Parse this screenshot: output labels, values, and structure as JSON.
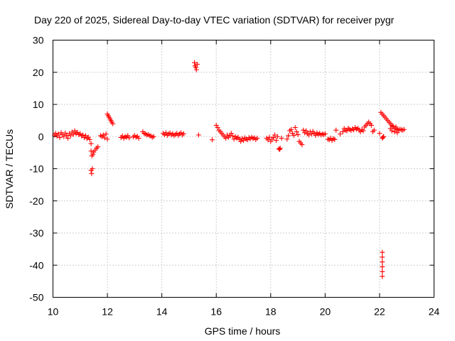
{
  "chart_data": {
    "type": "scatter",
    "title": "Day 220 of 2025, Sidereal Day-to-day VTEC variation (SDTVAR) for receiver pygr",
    "xlabel": "GPS time / hours",
    "ylabel": "SDTVAR / TECUs",
    "xlim": [
      10,
      24
    ],
    "ylim": [
      -50,
      30
    ],
    "xticks": [
      10,
      12,
      14,
      16,
      18,
      20,
      22,
      24
    ],
    "yticks": [
      -50,
      -40,
      -30,
      -20,
      -10,
      0,
      10,
      20,
      30
    ],
    "grid": true,
    "marker": "+",
    "color": "#ff0000",
    "series": [
      {
        "name": "SDTVAR",
        "points": [
          [
            10.05,
            0.5
          ],
          [
            10.1,
            1.0
          ],
          [
            10.15,
            0.2
          ],
          [
            10.2,
            0.8
          ],
          [
            10.25,
            -0.3
          ],
          [
            10.3,
            1.2
          ],
          [
            10.35,
            0.6
          ],
          [
            10.4,
            0.0
          ],
          [
            10.45,
            1.1
          ],
          [
            10.5,
            0.4
          ],
          [
            10.55,
            -0.5
          ],
          [
            10.6,
            0.9
          ],
          [
            10.65,
            0.3
          ],
          [
            10.7,
            1.4
          ],
          [
            10.75,
            0.7
          ],
          [
            10.8,
            1.8
          ],
          [
            10.85,
            1.0
          ],
          [
            10.9,
            1.3
          ],
          [
            10.95,
            0.6
          ],
          [
            11.0,
            0.9
          ],
          [
            11.05,
            0.2
          ],
          [
            11.1,
            0.5
          ],
          [
            11.15,
            -0.3
          ],
          [
            11.2,
            0.3
          ],
          [
            11.25,
            -0.6
          ],
          [
            11.3,
            -0.2
          ],
          [
            11.35,
            -0.9
          ],
          [
            11.4,
            -2.2
          ],
          [
            11.4,
            -4.5
          ],
          [
            11.43,
            -6.0
          ],
          [
            11.47,
            -5.5
          ],
          [
            11.5,
            -4.8
          ],
          [
            11.55,
            -4.2
          ],
          [
            11.6,
            -3.6
          ],
          [
            11.65,
            -3.2
          ],
          [
            11.4,
            -10.5
          ],
          [
            11.42,
            -11.5
          ],
          [
            11.45,
            -10.0
          ],
          [
            11.75,
            0.3
          ],
          [
            11.8,
            0.0
          ],
          [
            11.85,
            0.5
          ],
          [
            11.9,
            -0.4
          ],
          [
            11.95,
            0.8
          ],
          [
            12.0,
            7.0
          ],
          [
            12.03,
            6.5
          ],
          [
            12.06,
            6.0
          ],
          [
            12.1,
            5.5
          ],
          [
            12.13,
            5.0
          ],
          [
            12.16,
            4.5
          ],
          [
            12.2,
            4.0
          ],
          [
            12.0,
            -0.8
          ],
          [
            12.5,
            -0.3
          ],
          [
            12.55,
            0.2
          ],
          [
            12.6,
            -0.5
          ],
          [
            12.65,
            0.0
          ],
          [
            12.7,
            -0.2
          ],
          [
            12.75,
            0.3
          ],
          [
            12.8,
            -0.4
          ],
          [
            12.95,
            -0.1
          ],
          [
            13.0,
            0.3
          ],
          [
            13.05,
            -0.2
          ],
          [
            13.1,
            0.1
          ],
          [
            13.15,
            -0.5
          ],
          [
            13.3,
            1.5
          ],
          [
            13.35,
            1.0
          ],
          [
            13.4,
            0.8
          ],
          [
            13.45,
            0.5
          ],
          [
            13.5,
            0.6
          ],
          [
            13.55,
            0.3
          ],
          [
            13.6,
            0.2
          ],
          [
            13.65,
            -0.2
          ],
          [
            13.7,
            0.0
          ],
          [
            14.05,
            1.0
          ],
          [
            14.1,
            0.6
          ],
          [
            14.15,
            1.2
          ],
          [
            14.2,
            0.4
          ],
          [
            14.25,
            0.8
          ],
          [
            14.3,
            1.1
          ],
          [
            14.35,
            0.5
          ],
          [
            14.4,
            0.9
          ],
          [
            14.45,
            0.3
          ],
          [
            14.5,
            0.7
          ],
          [
            14.55,
            1.0
          ],
          [
            14.6,
            0.4
          ],
          [
            14.65,
            0.8
          ],
          [
            14.7,
            1.2
          ],
          [
            14.75,
            0.5
          ],
          [
            14.8,
            0.9
          ],
          [
            15.2,
            23.0
          ],
          [
            15.22,
            22.0
          ],
          [
            15.25,
            21.5
          ],
          [
            15.27,
            20.8
          ],
          [
            15.3,
            22.5
          ],
          [
            15.35,
            0.5
          ],
          [
            15.85,
            -1.0
          ],
          [
            16.0,
            3.5
          ],
          [
            16.05,
            2.8
          ],
          [
            16.1,
            2.0
          ],
          [
            16.15,
            1.5
          ],
          [
            16.2,
            1.0
          ],
          [
            16.25,
            0.5
          ],
          [
            16.3,
            0.0
          ],
          [
            16.35,
            -0.5
          ],
          [
            16.4,
            0.5
          ],
          [
            16.45,
            -0.2
          ],
          [
            16.5,
            0.3
          ],
          [
            16.55,
            1.0
          ],
          [
            16.6,
            0.2
          ],
          [
            16.65,
            -0.8
          ],
          [
            16.7,
            0.0
          ],
          [
            16.75,
            -0.5
          ],
          [
            16.8,
            -0.2
          ],
          [
            16.85,
            -0.9
          ],
          [
            16.9,
            -1.5
          ],
          [
            16.95,
            -0.6
          ],
          [
            17.0,
            -1.2
          ],
          [
            17.05,
            -0.4
          ],
          [
            17.1,
            -0.8
          ],
          [
            17.15,
            -1.0
          ],
          [
            17.2,
            -0.3
          ],
          [
            17.25,
            -0.7
          ],
          [
            17.3,
            -0.2
          ],
          [
            17.35,
            -0.6
          ],
          [
            17.4,
            -0.4
          ],
          [
            17.45,
            -0.9
          ],
          [
            17.5,
            -0.5
          ],
          [
            17.85,
            -0.5
          ],
          [
            17.9,
            -1.0
          ],
          [
            17.95,
            -0.2
          ],
          [
            18.0,
            -1.5
          ],
          [
            18.05,
            -0.8
          ],
          [
            18.1,
            -0.3
          ],
          [
            18.15,
            0.5
          ],
          [
            18.2,
            -1.2
          ],
          [
            18.25,
            0.0
          ],
          [
            18.3,
            -3.8
          ],
          [
            18.33,
            -4.0
          ],
          [
            18.35,
            -3.6
          ],
          [
            18.4,
            -0.5
          ],
          [
            18.6,
            -0.8
          ],
          [
            18.65,
            0.3
          ],
          [
            18.7,
            1.8
          ],
          [
            18.75,
            2.2
          ],
          [
            18.8,
            1.0
          ],
          [
            18.85,
            0.4
          ],
          [
            18.9,
            2.8
          ],
          [
            18.95,
            1.5
          ],
          [
            19.0,
            0.6
          ],
          [
            19.05,
            -1.5
          ],
          [
            19.1,
            -2.0
          ],
          [
            19.15,
            -2.5
          ],
          [
            19.2,
            2.0
          ],
          [
            19.25,
            1.2
          ],
          [
            19.3,
            1.8
          ],
          [
            19.35,
            0.9
          ],
          [
            19.4,
            0.5
          ],
          [
            19.45,
            1.5
          ],
          [
            19.5,
            0.8
          ],
          [
            19.55,
            1.6
          ],
          [
            19.6,
            1.0
          ],
          [
            19.65,
            0.4
          ],
          [
            19.7,
            1.2
          ],
          [
            19.75,
            0.7
          ],
          [
            19.8,
            1.0
          ],
          [
            19.85,
            0.5
          ],
          [
            19.9,
            0.8
          ],
          [
            19.95,
            0.6
          ],
          [
            20.0,
            0.9
          ],
          [
            20.1,
            -0.8
          ],
          [
            20.15,
            -1.0
          ],
          [
            20.2,
            -0.5
          ],
          [
            20.25,
            -1.2
          ],
          [
            20.3,
            -0.6
          ],
          [
            20.35,
            -0.9
          ],
          [
            20.4,
            2.0
          ],
          [
            20.55,
            0.8
          ],
          [
            20.65,
            1.5
          ],
          [
            20.7,
            2.5
          ],
          [
            20.75,
            2.0
          ],
          [
            20.8,
            1.8
          ],
          [
            20.85,
            2.6
          ],
          [
            20.9,
            2.2
          ],
          [
            20.95,
            1.9
          ],
          [
            21.0,
            2.4
          ],
          [
            21.05,
            2.1
          ],
          [
            21.1,
            2.8
          ],
          [
            21.15,
            2.3
          ],
          [
            21.2,
            2.6
          ],
          [
            21.25,
            2.0
          ],
          [
            21.3,
            1.5
          ],
          [
            21.35,
            2.2
          ],
          [
            21.4,
            1.8
          ],
          [
            21.45,
            3.0
          ],
          [
            21.5,
            3.5
          ],
          [
            21.55,
            4.0
          ],
          [
            21.6,
            4.5
          ],
          [
            21.65,
            4.0
          ],
          [
            21.7,
            3.5
          ],
          [
            21.75,
            1.5
          ],
          [
            21.8,
            2.0
          ],
          [
            22.0,
            1.0
          ],
          [
            22.05,
            7.5
          ],
          [
            22.1,
            7.0
          ],
          [
            22.15,
            6.5
          ],
          [
            22.2,
            6.0
          ],
          [
            22.25,
            5.5
          ],
          [
            22.3,
            5.0
          ],
          [
            22.35,
            4.5
          ],
          [
            22.4,
            4.0
          ],
          [
            22.45,
            3.5
          ],
          [
            22.5,
            3.0
          ],
          [
            22.55,
            2.5
          ],
          [
            22.6,
            2.5
          ],
          [
            22.65,
            2.2
          ],
          [
            22.7,
            2.0
          ],
          [
            22.75,
            2.3
          ],
          [
            22.8,
            2.1
          ],
          [
            22.85,
            2.0
          ],
          [
            22.9,
            2.2
          ],
          [
            22.4,
            2.5
          ],
          [
            22.45,
            1.8
          ],
          [
            22.5,
            3.2
          ],
          [
            22.55,
            1.5
          ],
          [
            22.6,
            3.0
          ],
          [
            22.65,
            1.2
          ],
          [
            22.1,
            -0.5
          ],
          [
            22.12,
            -0.2
          ],
          [
            22.15,
            0.0
          ],
          [
            22.1,
            -36.0
          ],
          [
            22.1,
            -37.5
          ],
          [
            22.1,
            -39.0
          ],
          [
            22.1,
            -40.5
          ],
          [
            22.1,
            -42.0
          ],
          [
            22.1,
            -43.5
          ]
        ]
      }
    ]
  }
}
